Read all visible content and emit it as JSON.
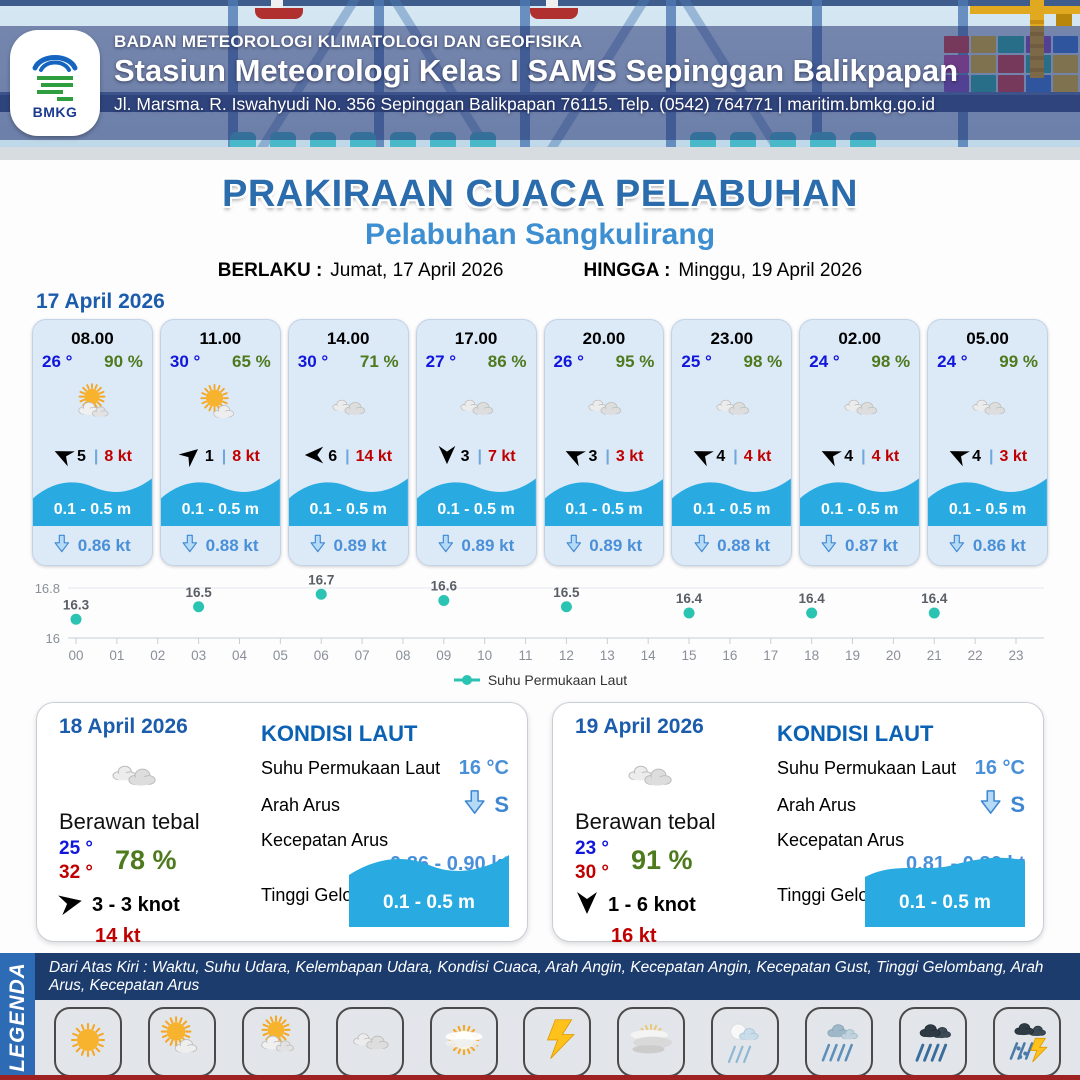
{
  "header": {
    "org": "BADAN METEOROLOGI KLIMATOLOGI DAN GEOFISIKA",
    "station": "Stasiun Meteorologi Kelas I SAMS Sepinggan Balikpapan",
    "address": "Jl. Marsma. R. Iswahyudi No. 356 Sepinggan Balikpapan 76115. Telp. (0542) 764771 | maritim.bmkg.go.id",
    "logo_text": "BMKG"
  },
  "title": {
    "main": "PRAKIRAAN CUACA PELABUHAN",
    "subtitle": "Pelabuhan Sangkulirang",
    "valid_from_label": "BERLAKU :",
    "valid_from": "Jumat, 17 April 2026",
    "valid_to_label": "HINGGA :",
    "valid_to": "Minggu, 19 April 2026"
  },
  "forecast": {
    "date_label": "17 April 2026",
    "cards": [
      {
        "time": "08.00",
        "temp": "26 °",
        "humidity": "90 %",
        "icon": "berawan",
        "wind_dir_deg": 205,
        "wind_speed": "5",
        "gust": "8 kt",
        "wave": "0.1 - 0.5 m",
        "current": "0.86 kt"
      },
      {
        "time": "11.00",
        "temp": "30 °",
        "humidity": "65 %",
        "icon": "cerah-berawan",
        "wind_dir_deg": -40,
        "wind_speed": "1",
        "gust": "8 kt",
        "wave": "0.1 - 0.5 m",
        "current": "0.88 kt"
      },
      {
        "time": "14.00",
        "temp": "30 °",
        "humidity": "71 %",
        "icon": "berawan-tebal",
        "wind_dir_deg": 180,
        "wind_speed": "6",
        "gust": "14 kt",
        "wave": "0.1 - 0.5 m",
        "current": "0.89 kt"
      },
      {
        "time": "17.00",
        "temp": "27 °",
        "humidity": "86 %",
        "icon": "berawan-tebal",
        "wind_dir_deg": 90,
        "wind_speed": "3",
        "gust": "7 kt",
        "wave": "0.1 - 0.5 m",
        "current": "0.89 kt"
      },
      {
        "time": "20.00",
        "temp": "26 °",
        "humidity": "95 %",
        "icon": "berawan-tebal",
        "wind_dir_deg": 205,
        "wind_speed": "3",
        "gust": "3 kt",
        "wave": "0.1 - 0.5 m",
        "current": "0.89 kt"
      },
      {
        "time": "23.00",
        "temp": "25 °",
        "humidity": "98 %",
        "icon": "berawan-tebal",
        "wind_dir_deg": 205,
        "wind_speed": "4",
        "gust": "4 kt",
        "wave": "0.1 - 0.5 m",
        "current": "0.88 kt"
      },
      {
        "time": "02.00",
        "temp": "24 °",
        "humidity": "98 %",
        "icon": "berawan-tebal",
        "wind_dir_deg": 205,
        "wind_speed": "4",
        "gust": "4 kt",
        "wave": "0.1 - 0.5 m",
        "current": "0.87 kt"
      },
      {
        "time": "05.00",
        "temp": "24 °",
        "humidity": "99 %",
        "icon": "berawan-tebal",
        "wind_dir_deg": 205,
        "wind_speed": "4",
        "gust": "3 kt",
        "wave": "0.1 - 0.5 m",
        "current": "0.86 kt"
      }
    ]
  },
  "chart_data": {
    "type": "line",
    "x": [
      "00",
      "01",
      "02",
      "03",
      "04",
      "05",
      "06",
      "07",
      "08",
      "09",
      "10",
      "11",
      "12",
      "13",
      "14",
      "15",
      "16",
      "17",
      "18",
      "19",
      "20",
      "21",
      "22",
      "23"
    ],
    "points": [
      {
        "hour": 0,
        "value": 16.3
      },
      {
        "hour": 3,
        "value": 16.5
      },
      {
        "hour": 6,
        "value": 16.7
      },
      {
        "hour": 9,
        "value": 16.6
      },
      {
        "hour": 12,
        "value": 16.5
      },
      {
        "hour": 15,
        "value": 16.4
      },
      {
        "hour": 18,
        "value": 16.4
      },
      {
        "hour": 21,
        "value": 16.4
      }
    ],
    "ylim": [
      16,
      16.8
    ],
    "yticks": [
      "16",
      "16.8"
    ],
    "legend": "Suhu Permukaan Laut",
    "color": "#2bc4b2",
    "grid": true,
    "legend_position": "bottom-center"
  },
  "daily": [
    {
      "date": "18 April 2026",
      "icon": "berawan-tebal",
      "condition": "Berawan tebal",
      "temp_min": "25 °",
      "temp_max": "32 °",
      "humidity": "78 %",
      "wind_dir_deg": -12,
      "wind_range": "3  - 3 knot",
      "gust": "14 kt",
      "sea": {
        "heading": "KONDISI LAUT",
        "sst_label": "Suhu Permukaan Laut",
        "sst": "16 °C",
        "dir_label": "Arah Arus",
        "dir": "S",
        "speed_label": "Kecepatan Arus",
        "speed": "0.86  - 0.90 kt",
        "wave_label": "Tinggi Gelombang",
        "wave": "0.1 - 0.5 m"
      }
    },
    {
      "date": "19 April 2026",
      "icon": "berawan-tebal",
      "condition": "Berawan tebal",
      "temp_min": "23 °",
      "temp_max": "30 °",
      "humidity": "91 %",
      "wind_dir_deg": 90,
      "wind_range": "1  - 6 knot",
      "gust": "16 kt",
      "sea": {
        "heading": "KONDISI LAUT",
        "sst_label": "Suhu Permukaan Laut",
        "sst": "16 °C",
        "dir_label": "Arah Arus",
        "dir": "S",
        "speed_label": "Kecepatan Arus",
        "speed": "0.81  - 0.86 kt",
        "wave_label": "Tinggi Gelombang",
        "wave": "0.1 - 0.5 m"
      }
    }
  ],
  "legend": {
    "vertical_label": "LEGENDA",
    "description": "Dari Atas Kiri : Waktu, Suhu Udara, Kelembapan Udara, Kondisi Cuaca, Arah Angin, Kecepatan Angin, Kecepatan Gust, Tinggi Gelombang, Arah Arus, Kecepatan Arus",
    "items": [
      {
        "label": "Cerah",
        "icon": "cerah"
      },
      {
        "label": "Cerah Berawan",
        "icon": "cerah-berawan"
      },
      {
        "label": "Berawan",
        "icon": "berawan"
      },
      {
        "label": "Berawan Tebal",
        "icon": "berawan-tebal"
      },
      {
        "label": "Udara Kabur",
        "icon": "udara-kabur"
      },
      {
        "label": "Petir",
        "icon": "petir"
      },
      {
        "label": "Kabut",
        "icon": "kabut"
      },
      {
        "label": "Hujan Ringan",
        "icon": "hujan-ringan"
      },
      {
        "label": "Hujan Sedang",
        "icon": "hujan-sedang"
      },
      {
        "label": "Hujan Lebat",
        "icon": "hujan-lebat"
      },
      {
        "label": "Hujan Petir",
        "icon": "hujan-petir"
      }
    ]
  },
  "colors": {
    "accent_blue": "#2b6cac",
    "subtitle_blue": "#3d8fd1",
    "temp_blue": "#1016dc",
    "humidity_green": "#4e7a1e",
    "wind_red": "#c00000",
    "wave_blue": "#29abe2",
    "current_blue": "#4a90d8",
    "chart_teal": "#2bc4b2",
    "legend_strip_navy": "#1d3c6e",
    "legenda_band_blue": "#2d6cb5"
  }
}
